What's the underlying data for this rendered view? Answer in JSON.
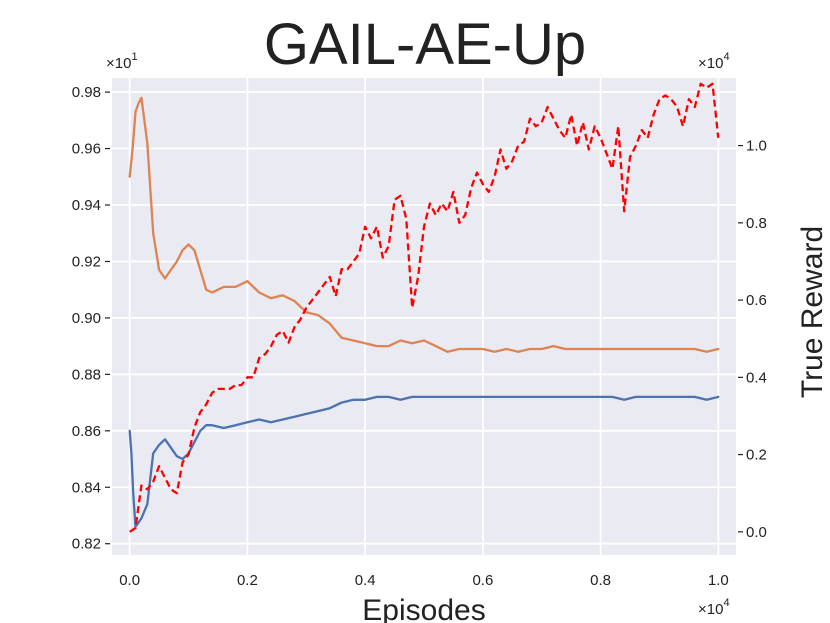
{
  "chart_data": {
    "type": "line",
    "title": "GAIL-AE-Up",
    "xlabel": "Episodes",
    "ylabel_right": "True Reward",
    "grid": true,
    "x_multiplier": "×10",
    "x_multiplier_exp": "4",
    "left_multiplier": "×10",
    "left_multiplier_exp": "1",
    "right_multiplier": "×10",
    "right_multiplier_exp": "4",
    "xlim": [
      -0.03,
      1.03
    ],
    "ylim_left": [
      0.816,
      0.985
    ],
    "ylim_right": [
      -0.06,
      1.175
    ],
    "x_ticks": [
      0.0,
      0.2,
      0.4,
      0.6,
      0.8,
      1.0
    ],
    "x_tick_labels": [
      "0.0",
      "0.2",
      "0.4",
      "0.6",
      "0.8",
      "1.0"
    ],
    "left_ticks": [
      0.82,
      0.84,
      0.86,
      0.88,
      0.9,
      0.92,
      0.94,
      0.96,
      0.98
    ],
    "left_tick_labels": [
      "0.82",
      "0.84",
      "0.86",
      "0.88",
      "0.90",
      "0.92",
      "0.94",
      "0.96",
      "0.98"
    ],
    "right_ticks": [
      0.0,
      0.2,
      0.4,
      0.6,
      0.8,
      1.0
    ],
    "right_tick_labels": [
      "0.0",
      "0.2",
      "0.4",
      "0.6",
      "0.8",
      "1.0"
    ],
    "series": [
      {
        "axis": "left",
        "color": "#dd8452",
        "style": "solid",
        "x": [
          0.0,
          0.005,
          0.01,
          0.015,
          0.02,
          0.03,
          0.04,
          0.05,
          0.06,
          0.07,
          0.08,
          0.09,
          0.1,
          0.11,
          0.12,
          0.13,
          0.14,
          0.15,
          0.16,
          0.18,
          0.2,
          0.22,
          0.24,
          0.26,
          0.28,
          0.3,
          0.32,
          0.34,
          0.36,
          0.38,
          0.4,
          0.42,
          0.44,
          0.46,
          0.48,
          0.5,
          0.52,
          0.54,
          0.56,
          0.58,
          0.6,
          0.62,
          0.64,
          0.66,
          0.68,
          0.7,
          0.72,
          0.74,
          0.76,
          0.78,
          0.8,
          0.82,
          0.84,
          0.86,
          0.88,
          0.9,
          0.92,
          0.94,
          0.96,
          0.98,
          1.0
        ],
        "y": [
          0.95,
          0.96,
          0.973,
          0.976,
          0.978,
          0.962,
          0.93,
          0.917,
          0.914,
          0.917,
          0.92,
          0.924,
          0.926,
          0.924,
          0.917,
          0.91,
          0.909,
          0.91,
          0.911,
          0.911,
          0.913,
          0.909,
          0.907,
          0.908,
          0.906,
          0.902,
          0.901,
          0.898,
          0.893,
          0.892,
          0.891,
          0.89,
          0.89,
          0.892,
          0.891,
          0.892,
          0.89,
          0.888,
          0.889,
          0.889,
          0.889,
          0.888,
          0.889,
          0.888,
          0.889,
          0.889,
          0.89,
          0.889,
          0.889,
          0.889,
          0.889,
          0.889,
          0.889,
          0.889,
          0.889,
          0.889,
          0.889,
          0.889,
          0.889,
          0.888,
          0.889
        ]
      },
      {
        "axis": "left",
        "color": "#4c72b0",
        "style": "solid",
        "x": [
          0.0,
          0.003,
          0.006,
          0.01,
          0.02,
          0.03,
          0.04,
          0.05,
          0.06,
          0.07,
          0.08,
          0.09,
          0.1,
          0.11,
          0.12,
          0.13,
          0.14,
          0.16,
          0.18,
          0.2,
          0.22,
          0.24,
          0.26,
          0.28,
          0.3,
          0.32,
          0.34,
          0.36,
          0.38,
          0.4,
          0.42,
          0.44,
          0.46,
          0.48,
          0.5,
          0.52,
          0.54,
          0.56,
          0.58,
          0.6,
          0.62,
          0.64,
          0.66,
          0.68,
          0.7,
          0.72,
          0.74,
          0.76,
          0.78,
          0.8,
          0.82,
          0.84,
          0.86,
          0.88,
          0.9,
          0.92,
          0.94,
          0.96,
          0.98,
          1.0
        ],
        "y": [
          0.86,
          0.852,
          0.838,
          0.826,
          0.829,
          0.834,
          0.852,
          0.855,
          0.857,
          0.854,
          0.851,
          0.85,
          0.852,
          0.856,
          0.86,
          0.862,
          0.862,
          0.861,
          0.862,
          0.863,
          0.864,
          0.863,
          0.864,
          0.865,
          0.866,
          0.867,
          0.868,
          0.87,
          0.871,
          0.871,
          0.872,
          0.872,
          0.871,
          0.872,
          0.872,
          0.872,
          0.872,
          0.872,
          0.872,
          0.872,
          0.872,
          0.872,
          0.872,
          0.872,
          0.872,
          0.872,
          0.872,
          0.872,
          0.872,
          0.872,
          0.872,
          0.871,
          0.872,
          0.872,
          0.872,
          0.872,
          0.872,
          0.872,
          0.871,
          0.872
        ]
      },
      {
        "axis": "right",
        "color": "#ff0000",
        "style": "dashed",
        "x": [
          0.0,
          0.01,
          0.02,
          0.03,
          0.04,
          0.05,
          0.06,
          0.07,
          0.08,
          0.09,
          0.1,
          0.11,
          0.12,
          0.13,
          0.14,
          0.15,
          0.16,
          0.17,
          0.18,
          0.19,
          0.2,
          0.21,
          0.22,
          0.23,
          0.24,
          0.25,
          0.26,
          0.27,
          0.28,
          0.29,
          0.3,
          0.31,
          0.32,
          0.33,
          0.34,
          0.35,
          0.36,
          0.37,
          0.38,
          0.39,
          0.4,
          0.41,
          0.42,
          0.43,
          0.44,
          0.45,
          0.46,
          0.47,
          0.48,
          0.49,
          0.5,
          0.51,
          0.52,
          0.53,
          0.54,
          0.55,
          0.56,
          0.57,
          0.58,
          0.59,
          0.6,
          0.61,
          0.62,
          0.63,
          0.64,
          0.65,
          0.66,
          0.67,
          0.68,
          0.69,
          0.7,
          0.71,
          0.72,
          0.73,
          0.74,
          0.75,
          0.76,
          0.77,
          0.78,
          0.79,
          0.8,
          0.81,
          0.82,
          0.83,
          0.84,
          0.85,
          0.86,
          0.87,
          0.88,
          0.89,
          0.9,
          0.91,
          0.92,
          0.93,
          0.94,
          0.95,
          0.96,
          0.97,
          0.98,
          0.99,
          1.0
        ],
        "y": [
          0.0,
          0.01,
          0.12,
          0.11,
          0.13,
          0.17,
          0.14,
          0.11,
          0.1,
          0.18,
          0.2,
          0.27,
          0.31,
          0.33,
          0.36,
          0.37,
          0.37,
          0.37,
          0.38,
          0.38,
          0.4,
          0.4,
          0.45,
          0.46,
          0.48,
          0.51,
          0.52,
          0.49,
          0.53,
          0.55,
          0.58,
          0.6,
          0.62,
          0.64,
          0.66,
          0.61,
          0.68,
          0.68,
          0.7,
          0.72,
          0.79,
          0.76,
          0.79,
          0.71,
          0.74,
          0.86,
          0.87,
          0.81,
          0.58,
          0.66,
          0.79,
          0.85,
          0.82,
          0.85,
          0.83,
          0.88,
          0.8,
          0.82,
          0.89,
          0.93,
          0.9,
          0.88,
          0.92,
          0.99,
          0.94,
          0.96,
          1.0,
          1.01,
          1.07,
          1.05,
          1.06,
          1.1,
          1.07,
          1.04,
          1.02,
          1.08,
          1.0,
          1.06,
          0.99,
          1.05,
          1.02,
          0.98,
          0.94,
          1.05,
          0.83,
          0.97,
          1.0,
          1.04,
          1.02,
          1.08,
          1.12,
          1.13,
          1.12,
          1.1,
          1.05,
          1.12,
          1.1,
          1.16,
          1.15,
          1.16,
          1.02
        ]
      }
    ]
  }
}
